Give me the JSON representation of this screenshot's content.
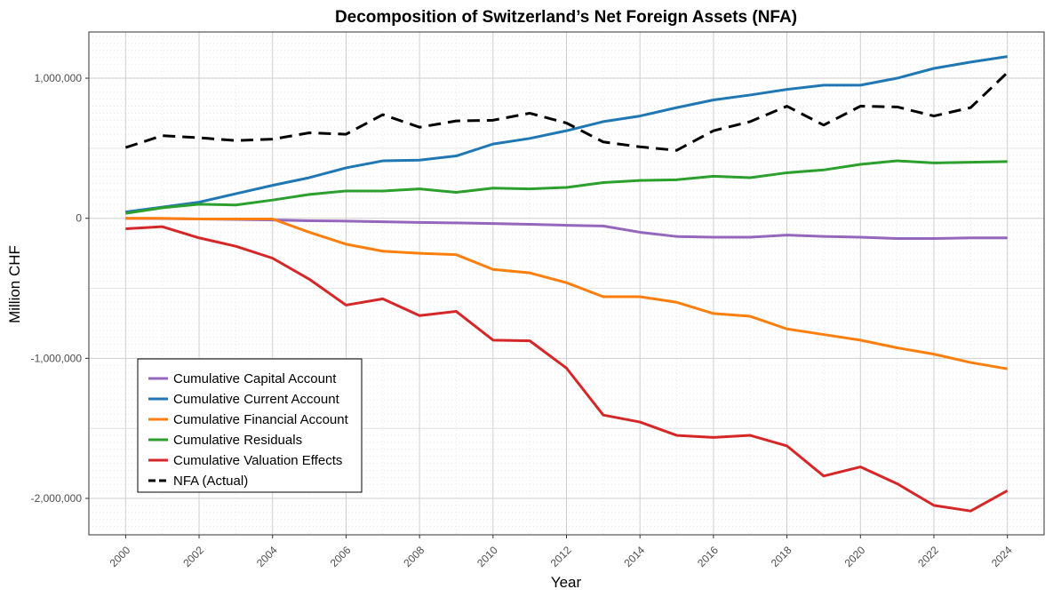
{
  "chart_data": {
    "type": "line",
    "title": "Decomposition of Switzerland’s Net Foreign Assets (NFA)",
    "xlabel": "Year",
    "ylabel": "Million CHF",
    "xlim": [
      1999,
      2025
    ],
    "ylim": [
      -2260000,
      1330000
    ],
    "x_ticks": [
      2000,
      2002,
      2004,
      2006,
      2008,
      2010,
      2012,
      2014,
      2016,
      2018,
      2020,
      2022,
      2024
    ],
    "x_tick_labels": [
      "2000",
      "2002",
      "2004",
      "2006",
      "2008",
      "2010",
      "2012",
      "2014",
      "2016",
      "2018",
      "2020",
      "2022",
      "2024"
    ],
    "y_ticks": [
      -2000000,
      -1000000,
      0,
      1000000
    ],
    "y_tick_labels": [
      "-2,000,000",
      "-1,000,000",
      "0",
      "1,000,000"
    ],
    "grid": true,
    "legend_position": "bottom-left",
    "x": [
      2000,
      2001,
      2002,
      2003,
      2004,
      2005,
      2006,
      2007,
      2008,
      2009,
      2010,
      2011,
      2012,
      2013,
      2014,
      2015,
      2016,
      2017,
      2018,
      2019,
      2020,
      2021,
      2022,
      2023,
      2024
    ],
    "series": [
      {
        "name": "Cumulative Capital Account",
        "color": "#9467bd",
        "dash": "solid",
        "values": [
          0,
          -2000,
          -5000,
          -8000,
          -12000,
          -18000,
          -20000,
          -25000,
          -30000,
          -33000,
          -38000,
          -43000,
          -50000,
          -55000,
          -100000,
          -130000,
          -135000,
          -135000,
          -120000,
          -130000,
          -135000,
          -145000,
          -145000,
          -140000,
          -140000
        ]
      },
      {
        "name": "Cumulative Current Account",
        "color": "#1f77b4",
        "dash": "solid",
        "values": [
          45000,
          80000,
          115000,
          175000,
          235000,
          290000,
          360000,
          410000,
          415000,
          445000,
          530000,
          570000,
          625000,
          690000,
          730000,
          790000,
          845000,
          880000,
          920000,
          950000,
          950000,
          1000000,
          1070000,
          1115000,
          1155000
        ]
      },
      {
        "name": "Cumulative Financial Account",
        "color": "#ff7f0e",
        "dash": "solid",
        "values": [
          0,
          0,
          -5000,
          -5000,
          -5000,
          -100000,
          -185000,
          -235000,
          -250000,
          -260000,
          -365000,
          -390000,
          -460000,
          -560000,
          -560000,
          -600000,
          -680000,
          -700000,
          -790000,
          -830000,
          -870000,
          -925000,
          -970000,
          -1030000,
          -1075000
        ]
      },
      {
        "name": "Cumulative Residuals",
        "color": "#2ca02c",
        "dash": "solid",
        "values": [
          35000,
          75000,
          100000,
          95000,
          130000,
          170000,
          195000,
          195000,
          210000,
          185000,
          215000,
          210000,
          220000,
          255000,
          270000,
          275000,
          300000,
          290000,
          325000,
          345000,
          385000,
          410000,
          395000,
          400000,
          405000
        ]
      },
      {
        "name": "Cumulative Valuation Effects",
        "color": "#d62728",
        "dash": "solid",
        "values": [
          -75000,
          -60000,
          -140000,
          -200000,
          -285000,
          -435000,
          -620000,
          -575000,
          -695000,
          -665000,
          -870000,
          -875000,
          -1070000,
          -1405000,
          -1455000,
          -1550000,
          -1565000,
          -1550000,
          -1625000,
          -1840000,
          -1775000,
          -1895000,
          -2050000,
          -2090000,
          -1945000
        ]
      },
      {
        "name": "NFA (Actual)",
        "color": "#000000",
        "dash": "dashed",
        "values": [
          505000,
          590000,
          575000,
          555000,
          565000,
          610000,
          600000,
          740000,
          650000,
          695000,
          700000,
          750000,
          680000,
          545000,
          510000,
          485000,
          625000,
          690000,
          800000,
          665000,
          800000,
          795000,
          730000,
          790000,
          1040000
        ]
      }
    ]
  }
}
